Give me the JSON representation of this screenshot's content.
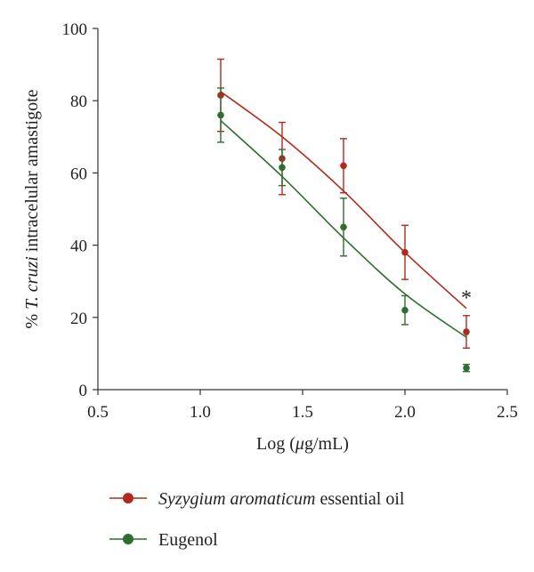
{
  "chart_data": {
    "type": "scatter",
    "xlabel": {
      "prefix": "Log (",
      "unit_symbol": "μ",
      "unit_rest": "g/mL)"
    },
    "ylabel": {
      "prefix": "% ",
      "italic": "T. cruzi",
      "suffix": " intracelular amastigote"
    },
    "xlim": [
      0.5,
      2.5
    ],
    "ylim": [
      0,
      100
    ],
    "xticks": [
      "0.5",
      "1.0",
      "1.5",
      "2.0",
      "2.5"
    ],
    "yticks": [
      "0",
      "20",
      "40",
      "60",
      "80",
      "100"
    ],
    "series": [
      {
        "name_italic": "Syzygium aromaticum",
        "name_rest": " essential oil",
        "color": "#b22a1e",
        "x": [
          1.1,
          1.4,
          1.7,
          2.0,
          2.3
        ],
        "y": [
          81.5,
          64,
          62,
          38,
          16
        ],
        "err": [
          10,
          10,
          7.5,
          7.5,
          4.5
        ],
        "fit_y": [
          82.5,
          70,
          55,
          38,
          22.5
        ]
      },
      {
        "name_italic": "",
        "name_rest": "Eugenol",
        "color": "#2e6e2e",
        "x": [
          1.1,
          1.4,
          1.7,
          2.0,
          2.3
        ],
        "y": [
          76,
          61.5,
          45,
          22,
          6
        ],
        "err": [
          7.5,
          5,
          8,
          4,
          1
        ],
        "fit_y": [
          74.5,
          59,
          42,
          26.5,
          14.5
        ]
      }
    ],
    "annotations": [
      {
        "text": "*",
        "x": 2.3,
        "y": 24
      }
    ],
    "legend_position": "bottom",
    "grid": false
  }
}
